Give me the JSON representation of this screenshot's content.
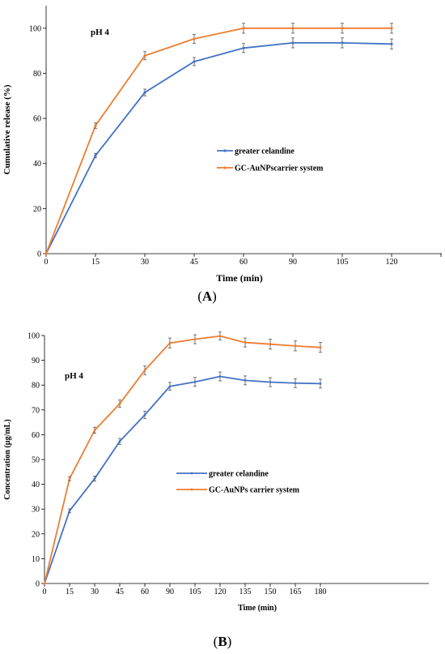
{
  "panels": {
    "a": {
      "caption_open": "(",
      "caption_letter": "A",
      "caption_close": ")"
    },
    "b": {
      "caption_open": "(",
      "caption_letter": "B",
      "caption_close": ")"
    }
  },
  "chart_data": [
    {
      "type": "line",
      "title": "",
      "annotation": "pH 4",
      "xlabel": "Time  (min)",
      "ylabel": "Cumulative release (%)",
      "categories": [
        "0",
        "15",
        "30",
        "45",
        "60",
        "90",
        "105",
        "120"
      ],
      "y_ticks": [
        "0",
        "20",
        "40",
        "60",
        "80",
        "100"
      ],
      "ylim": [
        0,
        110
      ],
      "grid": false,
      "error_bars": true,
      "legend_position": "center-right",
      "series": [
        {
          "name": "greater celandine",
          "color": "#4472C4",
          "values": [
            0,
            43.5,
            71.5,
            85.2,
            91.2,
            93.5,
            93.5,
            93.0
          ],
          "errors": [
            0,
            1.0,
            1.5,
            1.8,
            2.0,
            2.2,
            2.2,
            2.2
          ]
        },
        {
          "name": "GC-AuNPscarrier system",
          "color": "#ED7D31",
          "values": [
            0,
            56.8,
            87.8,
            95.3,
            100,
            100,
            100,
            100
          ],
          "errors": [
            0,
            1.2,
            1.8,
            2.0,
            2.2,
            2.2,
            2.2,
            2.2
          ]
        }
      ]
    },
    {
      "type": "line",
      "title": "",
      "annotation": "pH 4",
      "xlabel": "Time (min)",
      "ylabel": "Concentration (µg/mL)",
      "categories": [
        "0",
        "15",
        "30",
        "45",
        "60",
        "90",
        "105",
        "120",
        "135",
        "150",
        "165",
        "180"
      ],
      "y_ticks": [
        "0",
        "10",
        "20",
        "30",
        "40",
        "50",
        "60",
        "70",
        "80",
        "90",
        "100"
      ],
      "ylim": [
        0,
        100
      ],
      "grid": false,
      "error_bars": true,
      "legend_position": "center",
      "series": [
        {
          "name": "greater celandine",
          "color": "#4472C4",
          "values": [
            0,
            29.3,
            42.3,
            57.3,
            68.0,
            79.5,
            81.3,
            83.5,
            81.9,
            81.2,
            80.8,
            80.6
          ],
          "errors": [
            0,
            0.8,
            1.0,
            1.2,
            1.5,
            1.6,
            1.8,
            1.8,
            1.8,
            1.8,
            1.8,
            1.8
          ]
        },
        {
          "name": "GC-AuNPs carrier system",
          "color": "#ED7D31",
          "values": [
            0,
            42.3,
            61.8,
            72.5,
            86.0,
            97.0,
            98.5,
            99.8,
            97.2,
            96.5,
            95.8,
            95.2
          ],
          "errors": [
            0,
            0.8,
            1.2,
            1.5,
            1.8,
            2.0,
            1.8,
            1.6,
            1.8,
            2.0,
            2.0,
            2.0
          ]
        }
      ]
    }
  ]
}
